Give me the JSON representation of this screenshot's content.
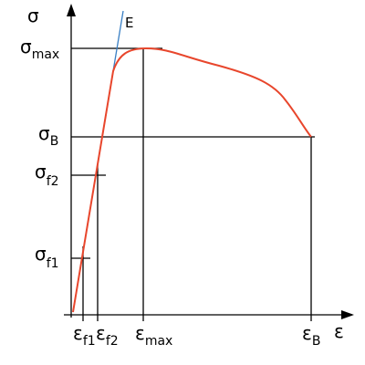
{
  "axes": {
    "y": "σ",
    "x": "ε"
  },
  "line_label": "E",
  "y_labels": [
    {
      "symbol": "σ",
      "sub": "max"
    },
    {
      "symbol": "σ",
      "sub": "B"
    },
    {
      "symbol": "σ",
      "sub": "f2"
    },
    {
      "symbol": "σ",
      "sub": "f1"
    }
  ],
  "x_labels": [
    {
      "symbol": "ε",
      "sub": "f1"
    },
    {
      "symbol": "ε",
      "sub": "f2"
    },
    {
      "symbol": "ε",
      "sub": "max"
    },
    {
      "symbol": "ε",
      "sub": "B"
    }
  ]
}
